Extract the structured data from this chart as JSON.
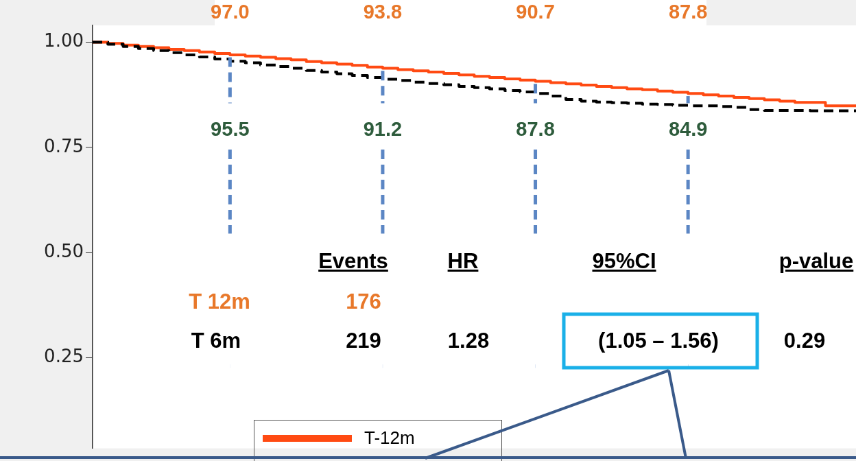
{
  "chart_data": {
    "type": "step",
    "categories": [
      null,
      null,
      null,
      null,
      null,
      null,
      null,
      null,
      null,
      null,
      null,
      null,
      null,
      null,
      null,
      null,
      null,
      null,
      null,
      null,
      null,
      null,
      null,
      null,
      null,
      null,
      null,
      null,
      null,
      null,
      null,
      null,
      null,
      null,
      null,
      null,
      null,
      null,
      null,
      null,
      null,
      null,
      null,
      null,
      null,
      null,
      null,
      null,
      null,
      null,
      null
    ],
    "series": [
      {
        "name": "T-12m",
        "color": "#ff4a12",
        "values": [
          1.0,
          0.997,
          0.993,
          0.99,
          0.987,
          0.983,
          0.98,
          0.977,
          0.973,
          0.97,
          0.967,
          0.964,
          0.961,
          0.958,
          0.954,
          0.951,
          0.948,
          0.945,
          0.941,
          0.938,
          0.935,
          0.932,
          0.929,
          0.926,
          0.922,
          0.919,
          0.916,
          0.913,
          0.91,
          0.907,
          0.904,
          0.901,
          0.898,
          0.895,
          0.892,
          0.889,
          0.887,
          0.884,
          0.881,
          0.878,
          0.875,
          0.872,
          0.869,
          0.866,
          0.863,
          0.86,
          0.857,
          0.857,
          0.849,
          0.849,
          0.848
        ]
      },
      {
        "color": "#000000",
        "line_style": "dashed",
        "values": [
          1.0,
          0.995,
          0.99,
          0.985,
          0.98,
          0.975,
          0.97,
          0.965,
          0.96,
          0.955,
          0.951,
          0.946,
          0.942,
          0.938,
          0.933,
          0.929,
          0.925,
          0.921,
          0.916,
          0.912,
          0.909,
          0.905,
          0.902,
          0.899,
          0.895,
          0.892,
          0.889,
          0.885,
          0.882,
          0.878,
          0.872,
          0.864,
          0.86,
          0.858,
          0.856,
          0.855,
          0.853,
          0.852,
          0.85,
          0.849,
          0.849,
          0.847,
          0.845,
          0.84,
          0.838,
          0.838,
          0.838,
          0.837,
          0.837,
          0.837,
          0.837
        ]
      }
    ],
    "ylim": [
      0.035,
      1.04
    ],
    "yticks": [
      {
        "value": 0.25,
        "label": "0.25"
      },
      {
        "value": 0.5,
        "label": "0.50"
      },
      {
        "value": 0.75,
        "label": "0.75"
      },
      {
        "value": 1.0,
        "label": "1.00"
      }
    ],
    "tick_labels": "y",
    "grid": false,
    "legend": "bottom",
    "annotations": [
      "Events",
      "HR",
      "95%CI",
      "p-value",
      "T 12m",
      "176",
      "T 6m",
      "219",
      "1.28",
      "(1.05 – 1.56)",
      "0.29",
      "97.0",
      "93.8",
      "90.7",
      "87.8",
      "95.5",
      "91.2",
      "87.8",
      "84.9"
    ]
  }
}
